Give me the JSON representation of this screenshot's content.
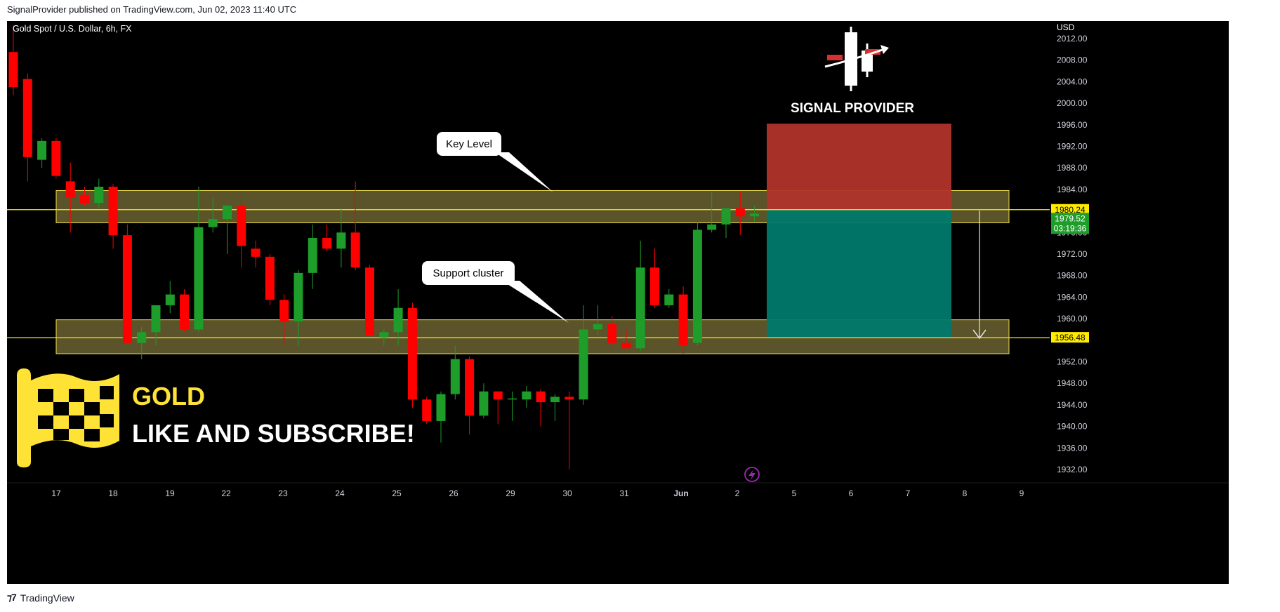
{
  "header": {
    "published_by": "SignalProvider published on TradingView.com, Jun 02, 2023 11:40 UTC"
  },
  "footer": {
    "brand": "TradingView",
    "logo_icon": "tradingview-logo-icon"
  },
  "colors": {
    "background": "#000000",
    "bull": "#1e9d2a",
    "bear": "#ff0000",
    "zone_fill": "#6b6230",
    "zone_border": "#f0e04a",
    "level_line": "#ffea00",
    "stop_zone": "#b0342b",
    "target_zone": "#00796b",
    "price_badge_bull": "#1e9d2a",
    "promo_yellow": "#ffe236"
  },
  "overlay": {
    "logo_icon": "candlestick-arrow-logo-icon",
    "brand_text": "SIGNAL PROVIDER",
    "flag_icon": "checkered-flag-icon",
    "promo_title": "GOLD",
    "promo_subtitle": "LIKE AND SUBSCRIBE!",
    "replay_icon": "lightning-circle-icon"
  },
  "chart_data": {
    "type": "candlestick",
    "title": "Gold Spot / U.S. Dollar, 6h, FX",
    "currency_label": "USD",
    "ylim": [
      1930,
      2014
    ],
    "y_ticks": [
      "2012.00",
      "2008.00",
      "2004.00",
      "2000.00",
      "1996.00",
      "1992.00",
      "1988.00",
      "1984.00",
      "1976.00",
      "1972.00",
      "1968.00",
      "1964.00",
      "1960.00",
      "1952.00",
      "1948.00",
      "1944.00",
      "1940.00",
      "1936.00",
      "1932.00"
    ],
    "x_ticks": [
      "17",
      "18",
      "19",
      "22",
      "23",
      "24",
      "25",
      "26",
      "29",
      "30",
      "31",
      "Jun",
      "2",
      "5",
      "6",
      "7",
      "8",
      "9"
    ],
    "current_price": "1979.52",
    "countdown": "03:19:36",
    "levels": [
      {
        "label": "1980.24",
        "value": 1980.24
      },
      {
        "label": "1956.48",
        "value": 1956.48
      }
    ],
    "zones": [
      {
        "name": "Key Level",
        "from": 1977.8,
        "to": 1983.8
      },
      {
        "name": "Support cluster",
        "from": 1953.5,
        "to": 1959.8
      }
    ],
    "position": {
      "entry": 1980.24,
      "stop": 1996.2,
      "target": 1956.48
    },
    "candles": [
      {
        "o": 2009.5,
        "h": 2014.5,
        "l": 2001.5,
        "c": 2003.0
      },
      {
        "o": 2004.5,
        "h": 2005.5,
        "l": 1985.5,
        "c": 1990.0
      },
      {
        "o": 1989.5,
        "h": 1993.5,
        "l": 1988.0,
        "c": 1993.0
      },
      {
        "o": 1993.0,
        "h": 1993.5,
        "l": 1986.0,
        "c": 1986.5
      },
      {
        "o": 1985.5,
        "h": 1989.0,
        "l": 1976.0,
        "c": 1982.5
      },
      {
        "o": 1983.0,
        "h": 1984.5,
        "l": 1981.0,
        "c": 1981.5
      },
      {
        "o": 1981.5,
        "h": 1986.0,
        "l": 1980.5,
        "c": 1984.5
      },
      {
        "o": 1984.5,
        "h": 1985.0,
        "l": 1973.0,
        "c": 1975.5
      },
      {
        "o": 1975.5,
        "h": 1977.5,
        "l": 1955.5,
        "c": 1955.5
      },
      {
        "o": 1955.5,
        "h": 1958.5,
        "l": 1952.5,
        "c": 1957.5
      },
      {
        "o": 1957.5,
        "h": 1962.5,
        "l": 1955.0,
        "c": 1962.5
      },
      {
        "o": 1962.5,
        "h": 1967.0,
        "l": 1961.0,
        "c": 1964.5
      },
      {
        "o": 1964.5,
        "h": 1965.5,
        "l": 1957.5,
        "c": 1958.0
      },
      {
        "o": 1958.0,
        "h": 1984.5,
        "l": 1957.5,
        "c": 1977.0
      },
      {
        "o": 1977.0,
        "h": 1982.5,
        "l": 1976.0,
        "c": 1978.5
      },
      {
        "o": 1978.5,
        "h": 1981.0,
        "l": 1972.0,
        "c": 1981.0
      },
      {
        "o": 1981.0,
        "h": 1983.0,
        "l": 1969.5,
        "c": 1973.5
      },
      {
        "o": 1973.0,
        "h": 1974.5,
        "l": 1969.5,
        "c": 1971.5
      },
      {
        "o": 1971.5,
        "h": 1972.0,
        "l": 1962.5,
        "c": 1963.5
      },
      {
        "o": 1963.5,
        "h": 1964.5,
        "l": 1955.5,
        "c": 1959.5
      },
      {
        "o": 1959.5,
        "h": 1969.0,
        "l": 1955.0,
        "c": 1968.5
      },
      {
        "o": 1968.5,
        "h": 1977.5,
        "l": 1965.5,
        "c": 1975.0
      },
      {
        "o": 1975.0,
        "h": 1977.5,
        "l": 1972.5,
        "c": 1973.0
      },
      {
        "o": 1973.0,
        "h": 1980.5,
        "l": 1969.5,
        "c": 1976.0
      },
      {
        "o": 1976.0,
        "h": 1985.5,
        "l": 1969.0,
        "c": 1969.5
      },
      {
        "o": 1969.5,
        "h": 1970.0,
        "l": 1957.0,
        "c": 1957.0
      },
      {
        "o": 1956.5,
        "h": 1958.0,
        "l": 1955.0,
        "c": 1957.5
      },
      {
        "o": 1957.5,
        "h": 1965.5,
        "l": 1955.0,
        "c": 1962.0
      },
      {
        "o": 1962.0,
        "h": 1963.0,
        "l": 1943.5,
        "c": 1945.0
      },
      {
        "o": 1945.0,
        "h": 1945.5,
        "l": 1940.5,
        "c": 1941.0
      },
      {
        "o": 1941.0,
        "h": 1946.5,
        "l": 1937.0,
        "c": 1946.0
      },
      {
        "o": 1946.0,
        "h": 1955.0,
        "l": 1945.0,
        "c": 1952.5
      },
      {
        "o": 1952.5,
        "h": 1953.0,
        "l": 1938.5,
        "c": 1942.0
      },
      {
        "o": 1942.0,
        "h": 1948.0,
        "l": 1941.5,
        "c": 1946.5
      },
      {
        "o": 1946.5,
        "h": 1946.5,
        "l": 1940.5,
        "c": 1945.0
      },
      {
        "o": 1945.0,
        "h": 1946.5,
        "l": 1941.0,
        "c": 1945.2
      },
      {
        "o": 1945.0,
        "h": 1947.5,
        "l": 1943.5,
        "c": 1946.5
      },
      {
        "o": 1946.5,
        "h": 1947.0,
        "l": 1940.0,
        "c": 1944.5
      },
      {
        "o": 1944.5,
        "h": 1946.0,
        "l": 1941.0,
        "c": 1945.5
      },
      {
        "o": 1945.5,
        "h": 1946.5,
        "l": 1932.0,
        "c": 1945.0
      },
      {
        "o": 1945.0,
        "h": 1962.5,
        "l": 1944.0,
        "c": 1958.0
      },
      {
        "o": 1958.0,
        "h": 1962.5,
        "l": 1957.0,
        "c": 1959.0
      },
      {
        "o": 1959.0,
        "h": 1960.5,
        "l": 1954.5,
        "c": 1955.5
      },
      {
        "o": 1955.5,
        "h": 1958.0,
        "l": 1954.5,
        "c": 1954.5
      },
      {
        "o": 1954.5,
        "h": 1974.5,
        "l": 1954.0,
        "c": 1969.5
      },
      {
        "o": 1969.5,
        "h": 1973.0,
        "l": 1962.0,
        "c": 1962.5
      },
      {
        "o": 1962.5,
        "h": 1965.5,
        "l": 1962.0,
        "c": 1964.5
      },
      {
        "o": 1964.5,
        "h": 1966.0,
        "l": 1953.5,
        "c": 1955.0
      },
      {
        "o": 1955.5,
        "h": 1978.0,
        "l": 1955.0,
        "c": 1976.5
      },
      {
        "o": 1976.5,
        "h": 1983.5,
        "l": 1976.0,
        "c": 1977.5
      },
      {
        "o": 1977.5,
        "h": 1980.5,
        "l": 1975.0,
        "c": 1980.5
      },
      {
        "o": 1980.5,
        "h": 1983.5,
        "l": 1975.5,
        "c": 1979.0
      },
      {
        "o": 1979.0,
        "h": 1981.0,
        "l": 1978.0,
        "c": 1979.52
      }
    ]
  }
}
